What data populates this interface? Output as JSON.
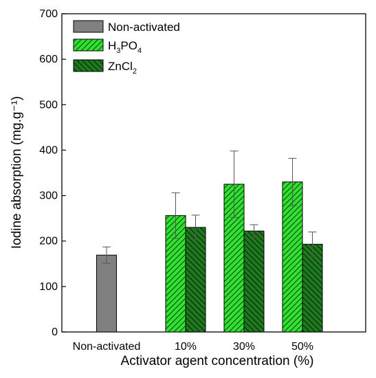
{
  "chart_data": {
    "type": "bar",
    "xlabel": "Activator agent concentration (%)",
    "ylabel": "Iodine absorption (mg.g⁻¹)",
    "ylim": [
      0,
      700
    ],
    "yticks": [
      0,
      100,
      200,
      300,
      400,
      500,
      600,
      700
    ],
    "categories": [
      "Non-activated",
      "10%",
      "30%",
      "50%"
    ],
    "legend_position": "top-left",
    "grid": false,
    "series": [
      {
        "name": "Non-activated",
        "color": "#808080",
        "pattern": "solid",
        "values": [
          169,
          null,
          null,
          null
        ],
        "errors": [
          18,
          null,
          null,
          null
        ]
      },
      {
        "name": "H3PO4",
        "name_parts": [
          "H",
          "3",
          "PO",
          "4"
        ],
        "color": "#33e033",
        "pattern": "hatch-right",
        "values": [
          null,
          256,
          325,
          330
        ],
        "errors": [
          null,
          50,
          73,
          52
        ]
      },
      {
        "name": "ZnCl2",
        "name_parts": [
          "ZnCl",
          "2"
        ],
        "color": "#1f7a1f",
        "pattern": "hatch-left",
        "values": [
          null,
          230,
          222,
          193
        ],
        "errors": [
          null,
          27,
          14,
          27
        ]
      }
    ]
  }
}
